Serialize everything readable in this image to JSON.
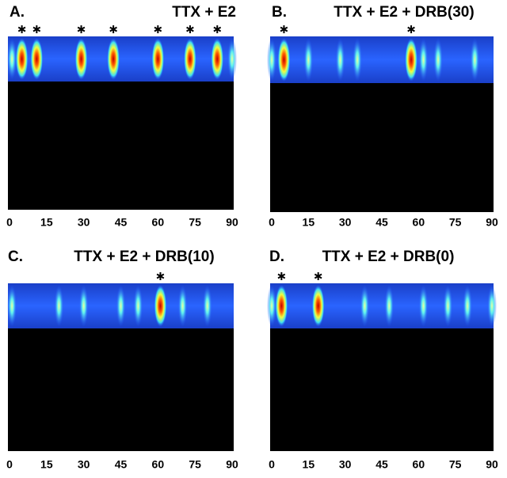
{
  "chart_data": [
    {
      "type": "raster",
      "panel": "A.",
      "title": "TTX + E2",
      "xlim": [
        0,
        90
      ],
      "xticks": [
        0,
        15,
        30,
        45,
        60,
        75,
        90
      ],
      "events": [
        1,
        5,
        11,
        29,
        42,
        60,
        73,
        84,
        90
      ],
      "peaks": [
        5,
        11,
        29,
        42,
        60,
        73,
        84
      ]
    },
    {
      "type": "raster",
      "panel": "B.",
      "title": "TTX + E2 + DRB(30)",
      "xlim": [
        0,
        90
      ],
      "xticks": [
        0,
        15,
        30,
        45,
        60,
        75,
        90
      ],
      "events": [
        0,
        5,
        15,
        28,
        35,
        57,
        62,
        68,
        83
      ],
      "peaks": [
        5,
        57
      ]
    },
    {
      "type": "raster",
      "panel": "C.",
      "title": "TTX + E2 + DRB(10)",
      "xlim": [
        0,
        90
      ],
      "xticks": [
        0,
        15,
        30,
        45,
        60,
        75,
        90
      ],
      "events": [
        1,
        20,
        30,
        45,
        52,
        61,
        70,
        80
      ],
      "peaks": [
        61
      ]
    },
    {
      "type": "raster",
      "panel": "D.",
      "title": "TTX + E2 + DRB(0)",
      "xlim": [
        0,
        90
      ],
      "xticks": [
        0,
        15,
        30,
        45,
        60,
        75,
        90
      ],
      "events": [
        0,
        4,
        19,
        38,
        48,
        62,
        72,
        80,
        90
      ],
      "peaks": [
        4,
        19
      ]
    }
  ]
}
